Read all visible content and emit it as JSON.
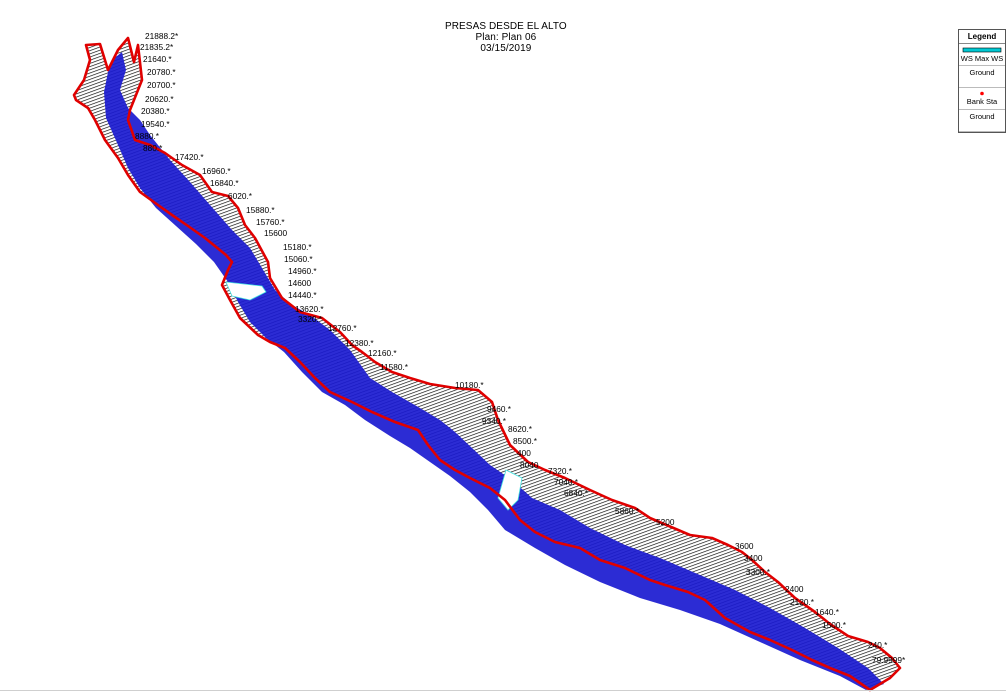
{
  "header": {
    "project": "PRESAS DESDE EL ALTO",
    "plan": "Plan: Plan 06",
    "date": "03/15/2019"
  },
  "legend": {
    "title": "Legend",
    "items": [
      {
        "label": "WS Max WS",
        "swatch": "ws-line",
        "color": "#00c8d2"
      },
      {
        "label": "Ground",
        "swatch": "ground-line",
        "color": "#000000"
      },
      {
        "label": "Bank Sta",
        "swatch": "bank-station-dot",
        "color": "#ff0000"
      },
      {
        "label": "Ground",
        "swatch": "ground-outline",
        "color": "#000000"
      }
    ]
  },
  "colors": {
    "outline": "#e00000",
    "water": "#1a1ad0",
    "hatch": "#000000",
    "ws_highlight": "#40e0e0"
  },
  "stations": [
    "21888.2*",
    "21835.2*",
    "21640.*",
    "20780.*",
    "20700.*",
    "20620.*",
    "20380.*",
    "19540.*",
    "8880.*",
    "880.*",
    "17420.*",
    "16960.*",
    "16840.*",
    "6020.*",
    "15880.*",
    "15760.*",
    "15600",
    "15180.*",
    "15060.*",
    "14960.*",
    "14600",
    "14440.*",
    "13620.*",
    "3320.*",
    "12760.*",
    "12380.*",
    "12160.*",
    "11580.*",
    "10180.*",
    "9460.*",
    "9340.*",
    "8620.*",
    "8500.*",
    "400",
    "8040",
    "7320.*",
    "7040.*",
    "6840.*",
    "5860.*",
    "5200",
    "3600",
    "3400",
    "3300.*",
    "2400",
    "2120.*",
    "1640.*",
    "1500.*",
    "240.*",
    "79.9999*"
  ]
}
